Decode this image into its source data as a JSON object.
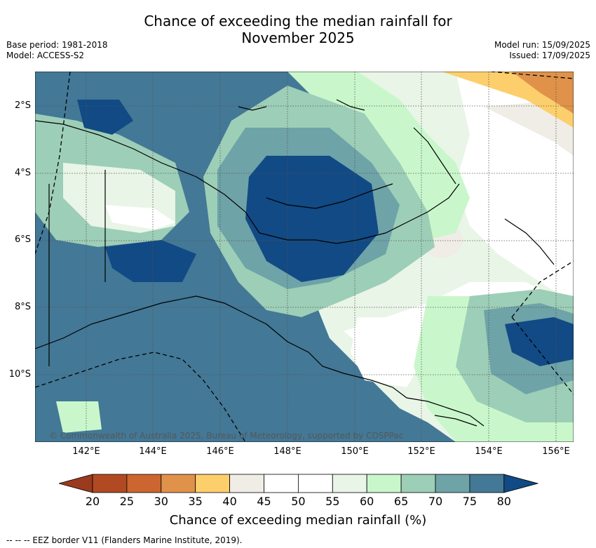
{
  "header": {
    "title_line1": "Chance of exceeding the median rainfall for",
    "title_line2": "November 2025",
    "base_period": "Base period: 1981-2018",
    "model": "Model: ACCESS-S2",
    "model_run": "Model run: 15/09/2025",
    "issued": "Issued: 17/09/2025"
  },
  "map": {
    "lat_labels": [
      "2°S",
      "4°S",
      "6°S",
      "8°S",
      "10°S"
    ],
    "lon_labels": [
      "142°E",
      "144°E",
      "146°E",
      "148°E",
      "150°E",
      "152°E",
      "154°E",
      "156°E"
    ],
    "copyright": "© Commonwealth of Australia 2025, Bureau of Meteorology, supported by COSPPac"
  },
  "colorbar": {
    "ticks": [
      "20",
      "25",
      "30",
      "35",
      "40",
      "45",
      "50",
      "55",
      "60",
      "65",
      "70",
      "75",
      "80"
    ],
    "colors": [
      "#9b3a1e",
      "#b14a22",
      "#cc6530",
      "#e0924a",
      "#fccf6c",
      "#f0ece6",
      "#ffffff",
      "#ffffff",
      "#e9f5e7",
      "#c9f7cb",
      "#9dceb7",
      "#6ea3a8",
      "#437896",
      "#114a84"
    ],
    "title": "Chance of exceeding median rainfall (%)"
  },
  "footer": {
    "legend": "--  --  -- EEZ border V11 (Flanders Marine Institute, 2019)."
  }
}
